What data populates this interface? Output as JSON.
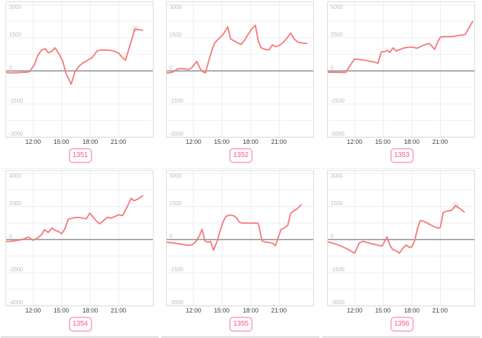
{
  "colors": {
    "line": "#f57d7d",
    "zero_line": "#a8a8a8",
    "grid": "#ededed",
    "box_border": "#dcdcdc",
    "y_tick_text": "#bdbdbd",
    "x_tick_text": "#3d3d3d",
    "badge_text": "#f2558a",
    "badge_border": "#fbb3c8",
    "halo": "#ebebeb",
    "divider": "#e4e4e4"
  },
  "chart_data": [
    {
      "type": "line",
      "label": "1351",
      "ylim": [
        -3000,
        3000
      ],
      "y_ticks": [
        3000,
        1500,
        0,
        -1500,
        -3000
      ],
      "x_ticks": [
        "12:00",
        "15:00",
        "18:00",
        "21:00"
      ],
      "halo_at_max": true,
      "x": [
        9.1,
        9.6,
        10.1,
        10.6,
        11.1,
        11.6,
        12.1,
        12.5,
        12.9,
        13.3,
        13.6,
        14.0,
        14.3,
        14.7,
        15.1,
        15.5,
        16.0,
        16.4,
        16.8,
        17.2,
        17.6,
        18.0,
        18.3,
        18.7,
        19.1,
        19.5,
        20.0,
        20.5,
        21.0,
        21.4,
        21.7,
        22.2,
        22.7,
        23.1,
        23.5
      ],
      "y": [
        -70,
        -90,
        -85,
        -75,
        -65,
        -40,
        250,
        700,
        950,
        1000,
        820,
        900,
        1050,
        800,
        450,
        -150,
        -600,
        -50,
        200,
        350,
        450,
        550,
        650,
        900,
        950,
        950,
        940,
        900,
        800,
        600,
        480,
        1200,
        1900,
        1870,
        1850
      ]
    },
    {
      "type": "line",
      "label": "1352",
      "ylim": [
        -3000,
        3000
      ],
      "y_ticks": [
        3000,
        1500,
        0,
        -1500,
        -3000
      ],
      "x_ticks": [
        "12:00",
        "15:00",
        "18:00",
        "21:00"
      ],
      "halo_at_max": false,
      "x": [
        9.1,
        9.5,
        9.9,
        10.3,
        10.7,
        11.1,
        11.5,
        11.8,
        12.1,
        12.35,
        12.7,
        13.0,
        13.25,
        13.6,
        13.9,
        14.2,
        14.5,
        14.8,
        15.1,
        15.6,
        15.9,
        16.2,
        16.6,
        17.0,
        17.4,
        17.8,
        18.1,
        18.5,
        18.8,
        19.1,
        19.5,
        19.9,
        20.3,
        20.6,
        21.0,
        21.4,
        21.8,
        22.2,
        22.6,
        23.0,
        23.5,
        23.9
      ],
      "y": [
        -100,
        -90,
        -30,
        80,
        110,
        90,
        70,
        140,
        300,
        430,
        100,
        -40,
        -90,
        450,
        900,
        1250,
        1400,
        1520,
        1650,
        2000,
        1450,
        1380,
        1280,
        1200,
        1420,
        1700,
        1900,
        2070,
        1350,
        1050,
        980,
        950,
        1180,
        1100,
        1150,
        1280,
        1480,
        1720,
        1430,
        1300,
        1260,
        1250
      ]
    },
    {
      "type": "line",
      "label": "1353",
      "ylim": [
        -5000,
        5000
      ],
      "y_ticks": [
        5000,
        2500,
        0,
        -2500,
        -5000
      ],
      "x_ticks": [
        "12:00",
        "15:00",
        "18:00",
        "21:00"
      ],
      "halo_at_max": false,
      "x": [
        9.1,
        9.6,
        10.1,
        10.6,
        11.05,
        11.5,
        12.0,
        12.4,
        12.8,
        13.2,
        13.6,
        13.95,
        14.45,
        14.8,
        15.15,
        15.45,
        15.7,
        16.05,
        16.35,
        16.8,
        17.2,
        17.6,
        18.0,
        18.55,
        19.2,
        19.6,
        19.85,
        20.4,
        20.75,
        21.0,
        21.3,
        21.8,
        22.3,
        22.7,
        23.0,
        23.6,
        24.4
      ],
      "y": [
        -100,
        -105,
        -110,
        -115,
        -120,
        380,
        900,
        880,
        830,
        800,
        720,
        700,
        580,
        1440,
        1460,
        1550,
        1410,
        1750,
        1510,
        1630,
        1740,
        1780,
        1800,
        1720,
        1930,
        2030,
        2070,
        1630,
        2240,
        2550,
        2600,
        2590,
        2600,
        2650,
        2700,
        2750,
        3750
      ]
    },
    {
      "type": "line",
      "label": "1354",
      "ylim": [
        -4000,
        4000
      ],
      "y_ticks": [
        4000,
        2000,
        0,
        -2000,
        -4000
      ],
      "x_ticks": [
        "12:00",
        "15:00",
        "18:00",
        "21:00"
      ],
      "halo_at_max": false,
      "x": [
        9.1,
        9.6,
        10.1,
        10.6,
        11.1,
        11.5,
        12.0,
        12.5,
        12.9,
        13.2,
        13.6,
        14.0,
        14.3,
        14.7,
        15.0,
        15.3,
        15.7,
        16.0,
        16.4,
        16.8,
        17.2,
        17.6,
        17.95,
        18.4,
        18.7,
        19.0,
        19.4,
        19.8,
        20.2,
        20.6,
        21.0,
        21.4,
        21.9,
        22.3,
        22.6,
        23.0,
        23.5
      ],
      "y": [
        -120,
        -110,
        -70,
        -30,
        50,
        150,
        -40,
        100,
        300,
        600,
        430,
        700,
        560,
        480,
        350,
        600,
        1230,
        1280,
        1330,
        1340,
        1300,
        1260,
        1600,
        1300,
        1100,
        950,
        1150,
        1350,
        1300,
        1400,
        1500,
        1450,
        2000,
        2500,
        2350,
        2450,
        2650
      ]
    },
    {
      "type": "line",
      "label": "1355",
      "ylim": [
        -3000,
        3000
      ],
      "y_ticks": [
        3000,
        1500,
        0,
        -1500,
        -3000
      ],
      "x_ticks": [
        "12:00",
        "15:00",
        "18:00",
        "21:00"
      ],
      "halo_at_max": false,
      "x": [
        9.1,
        9.6,
        10.1,
        10.6,
        11.1,
        11.6,
        11.9,
        12.2,
        12.6,
        12.9,
        13.2,
        13.5,
        13.8,
        14.1,
        14.5,
        14.8,
        15.1,
        15.4,
        15.8,
        16.2,
        16.5,
        16.8,
        17.1,
        17.5,
        18.0,
        18.4,
        18.8,
        19.2,
        19.5,
        19.9,
        20.3,
        20.6,
        20.9,
        21.2,
        21.5,
        21.9,
        22.2,
        22.5,
        22.9,
        23.3
      ],
      "y": [
        -120,
        -140,
        -170,
        -200,
        -240,
        -260,
        -230,
        -120,
        150,
        470,
        -60,
        -120,
        -90,
        -480,
        -60,
        400,
        800,
        1050,
        1120,
        1080,
        1000,
        800,
        740,
        750,
        740,
        750,
        730,
        -60,
        -110,
        -130,
        -160,
        -280,
        100,
        470,
        520,
        640,
        1180,
        1300,
        1400,
        1580
      ]
    },
    {
      "type": "line",
      "label": "1356",
      "ylim": [
        -3000,
        3000
      ],
      "y_ticks": [
        3000,
        1500,
        0,
        -1500,
        -3000
      ],
      "x_ticks": [
        "12:00",
        "15:00",
        "18:00",
        "21:00"
      ],
      "halo_at_max": true,
      "x": [
        9.1,
        9.6,
        10.1,
        10.6,
        11.2,
        11.6,
        12.0,
        12.5,
        12.9,
        13.3,
        13.7,
        14.1,
        14.5,
        14.9,
        15.4,
        15.7,
        16.0,
        16.4,
        16.7,
        17.1,
        17.4,
        17.8,
        18.0,
        18.3,
        18.6,
        18.9,
        19.3,
        19.7,
        20.1,
        20.5,
        20.8,
        21.0,
        21.3,
        21.7,
        22.2,
        22.6,
        23.0,
        23.5
      ],
      "y": [
        -100,
        -150,
        -220,
        -300,
        -420,
        -520,
        -620,
        -150,
        -80,
        -130,
        -180,
        -220,
        -260,
        -290,
        120,
        -250,
        -450,
        -520,
        -620,
        -380,
        -250,
        -360,
        -330,
        -60,
        500,
        870,
        820,
        730,
        640,
        560,
        520,
        560,
        1230,
        1290,
        1330,
        1540,
        1420,
        1250
      ]
    }
  ]
}
